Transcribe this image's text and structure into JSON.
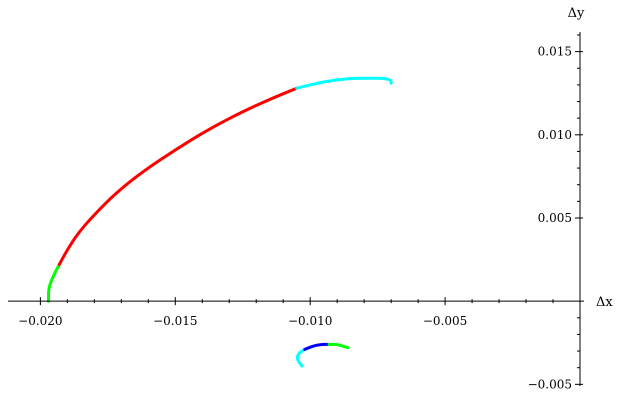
{
  "chart_data": {
    "type": "line",
    "xlabel": "Δx",
    "ylabel": "Δy",
    "xlim": [
      -0.0212,
      0.0
    ],
    "ylim": [
      -0.0051,
      0.0163
    ],
    "grid": false,
    "x_ticks": [
      {
        "value": -0.02,
        "label": "−0.020"
      },
      {
        "value": -0.015,
        "label": "−0.015"
      },
      {
        "value": -0.01,
        "label": "−0.010"
      },
      {
        "value": -0.005,
        "label": "−0.005"
      }
    ],
    "y_ticks": [
      {
        "value": -0.005,
        "label": "−0.005"
      },
      {
        "value": 0.005,
        "label": "0.005"
      },
      {
        "value": 0.01,
        "label": "0.010"
      },
      {
        "value": 0.015,
        "label": "0.015"
      }
    ],
    "series": [
      {
        "color": "#00ff00",
        "points": [
          [
            -0.0197,
            0.0
          ],
          [
            -0.0197,
            0.0008
          ],
          [
            -0.0195,
            0.0016
          ],
          [
            -0.0193,
            0.0022
          ]
        ]
      },
      {
        "color": "#ff0000",
        "points": [
          [
            -0.0193,
            0.0022
          ],
          [
            -0.019,
            0.0031
          ],
          [
            -0.0186,
            0.0041
          ],
          [
            -0.018,
            0.0052
          ],
          [
            -0.0172,
            0.0065
          ],
          [
            -0.0162,
            0.0078
          ],
          [
            -0.015,
            0.0091
          ],
          [
            -0.0138,
            0.0103
          ],
          [
            -0.0125,
            0.0114
          ],
          [
            -0.0114,
            0.0122
          ],
          [
            -0.0105,
            0.0128
          ]
        ]
      },
      {
        "color": "#00ffff",
        "points": [
          [
            -0.0105,
            0.0128
          ],
          [
            -0.0095,
            0.0132
          ],
          [
            -0.0085,
            0.0134
          ],
          [
            -0.0078,
            0.0134
          ],
          [
            -0.0073,
            0.0134
          ],
          [
            -0.007,
            0.0133
          ],
          [
            -0.007,
            0.0131
          ]
        ]
      },
      {
        "color": "#00ffff",
        "points": [
          [
            -0.0103,
            -0.0039
          ],
          [
            -0.0104,
            -0.0037
          ],
          [
            -0.0105,
            -0.0034
          ],
          [
            -0.0104,
            -0.0031
          ],
          [
            -0.0102,
            -0.0029
          ]
        ]
      },
      {
        "color": "#0000ff",
        "points": [
          [
            -0.0102,
            -0.0029
          ],
          [
            -0.0099,
            -0.0027
          ],
          [
            -0.0096,
            -0.0026
          ],
          [
            -0.0093,
            -0.0026
          ]
        ]
      },
      {
        "color": "#00ff00",
        "points": [
          [
            -0.0093,
            -0.0026
          ],
          [
            -0.009,
            -0.0026
          ],
          [
            -0.0088,
            -0.0027
          ],
          [
            -0.0086,
            -0.0028
          ]
        ]
      }
    ]
  }
}
